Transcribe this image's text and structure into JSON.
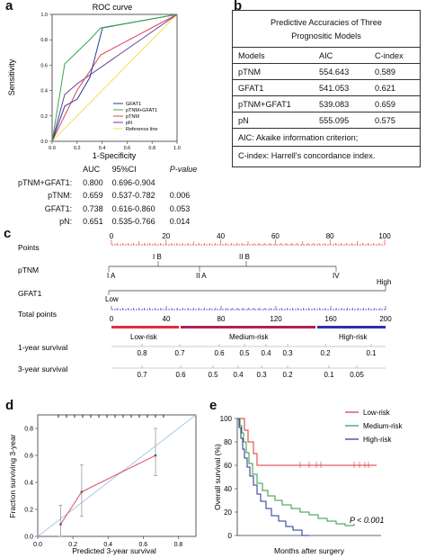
{
  "panels": {
    "a": "a",
    "b": "b",
    "c": "c",
    "d": "d",
    "e": "e"
  },
  "roc": {
    "title": "ROC curve",
    "xlabel": "1-Specificity",
    "ylabel": "Sensitivity",
    "ticks": [
      "0.0",
      "0.2",
      "0.4",
      "0.6",
      "0.8",
      "1.0"
    ],
    "legend": [
      "GFAT1",
      "pTNM+GFAT1",
      "pTNM",
      "pN",
      "Reference line"
    ],
    "colors": {
      "GFAT1": "#2b3a8f",
      "pTNM+GFAT1": "#3aa84a",
      "pTNM": "#e0425a",
      "pN": "#6a3d9a",
      "ref": "#f2e15a"
    }
  },
  "auc_table": {
    "headers": [
      "AUC",
      "95%CI",
      "P-value"
    ],
    "rows": [
      {
        "label": "pTNM+GFAT1:",
        "auc": "0.800",
        "ci": "0.696-0.904",
        "p": ""
      },
      {
        "label": "pTNM:",
        "auc": "0.659",
        "ci": "0.537-0.782",
        "p": "0.006"
      },
      {
        "label": "GFAT1:",
        "auc": "0.738",
        "ci": "0.616-0.860",
        "p": "0.053"
      },
      {
        "label": "pN:",
        "auc": "0.651",
        "ci": "0.535-0.766",
        "p": "0.014"
      }
    ]
  },
  "accuracy": {
    "title_line1": "Predictive Accuracies of Three",
    "title_line2": "Prognositic Models",
    "headers": [
      "Models",
      "AIC",
      "C-index"
    ],
    "rows": [
      [
        "pTNM",
        "554.643",
        "0.589"
      ],
      [
        "GFAT1",
        "541.053",
        "0.621"
      ],
      [
        "pTNM+GFAT1",
        "539.083",
        "0.659"
      ],
      [
        "pN",
        "555.095",
        "0.575"
      ]
    ],
    "foot1": "AIC: Akaike information criterion;",
    "foot2": "C-index: Harrell's concordance index."
  },
  "nomogram": {
    "rows": [
      "Points",
      "pTNM",
      "GFAT1",
      "Total points",
      "1-year survival",
      "3-year survival"
    ],
    "points_ticks": [
      "0",
      "20",
      "40",
      "60",
      "80",
      "100"
    ],
    "ptnm_labels": [
      "I A",
      "I B",
      "II A",
      "II B",
      "IV"
    ],
    "gfat_labels": [
      "Low",
      "High"
    ],
    "total_ticks": [
      "0",
      "40",
      "80",
      "120",
      "160",
      "200"
    ],
    "risk_groups": [
      "Low-risk",
      "Medium-risk",
      "High-risk"
    ],
    "risk_colors": [
      "#e0303a",
      "#b0205a",
      "#3030b0"
    ],
    "survival_1yr": [
      "0.8",
      "0.7",
      "0.6",
      "0.5",
      "0.4",
      "0.3",
      "0.2",
      "0.1"
    ],
    "survival_3yr": [
      "0.7",
      "0.6",
      "0.5",
      "0.4",
      "0.3",
      "0.2",
      "0.1",
      "0.05"
    ]
  },
  "calibration": {
    "ylabel": "Fraction surviving 3-year",
    "xlabel": "Predicted 3-year survival",
    "xticks": [
      "0.0",
      "0.2",
      "0.4",
      "0.6",
      "0.8"
    ],
    "yticks": [
      "0.0",
      "0.2",
      "0.4",
      "0.6",
      "0.8"
    ],
    "chart_data": {
      "type": "line",
      "x": [
        0.13,
        0.25,
        0.67
      ],
      "y": [
        0.09,
        0.33,
        0.6
      ],
      "err_low": [
        0.0,
        0.15,
        0.45
      ],
      "err_high": [
        0.23,
        0.53,
        0.8
      ],
      "xlim": [
        0,
        0.9
      ],
      "ylim": [
        0,
        0.9
      ]
    }
  },
  "survival": {
    "ylabel": "Overall survival (%)",
    "xlabel": "Months after surgery",
    "yticks": [
      "0",
      "20",
      "40",
      "60",
      "80",
      "100"
    ],
    "pvalue": "P < 0.001",
    "legend": [
      "Low-risk",
      "Medium-risk",
      "High-risk"
    ],
    "colors": [
      "#e0303a",
      "#2e9a3e",
      "#22308f"
    ]
  }
}
